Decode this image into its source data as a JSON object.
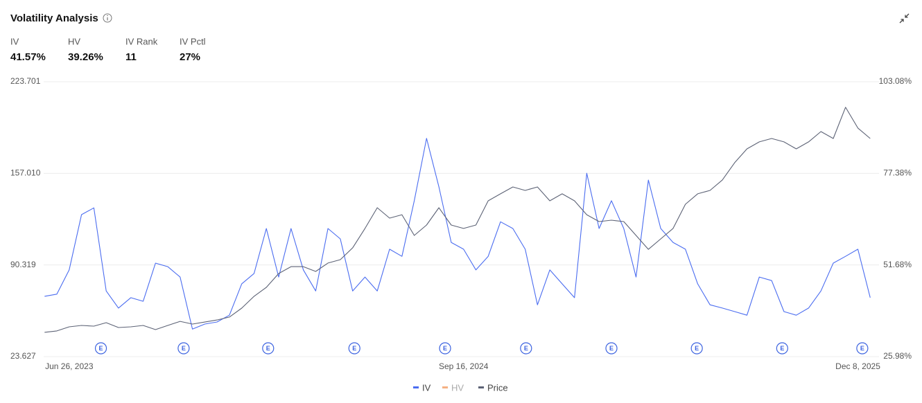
{
  "header": {
    "title": "Volatility Analysis",
    "stats": [
      {
        "label": "IV",
        "value": "41.57%"
      },
      {
        "label": "HV",
        "value": "39.26%"
      },
      {
        "label": "IV Rank",
        "value": "11"
      },
      {
        "label": "IV Pctl",
        "value": "27%"
      }
    ]
  },
  "chart_data": {
    "type": "line",
    "x": [
      "2023-05-29",
      "2023-06-12",
      "2023-06-26",
      "2023-07-10",
      "2023-07-24",
      "2023-08-07",
      "2023-08-21",
      "2023-09-04",
      "2023-09-18",
      "2023-10-02",
      "2023-10-16",
      "2023-10-30",
      "2023-11-13",
      "2023-11-27",
      "2023-12-11",
      "2023-12-25",
      "2024-01-08",
      "2024-01-22",
      "2024-02-05",
      "2024-02-19",
      "2024-03-04",
      "2024-03-18",
      "2024-04-01",
      "2024-04-15",
      "2024-04-29",
      "2024-05-13",
      "2024-05-27",
      "2024-06-10",
      "2024-06-24",
      "2024-07-08",
      "2024-07-22",
      "2024-08-05",
      "2024-08-19",
      "2024-09-02",
      "2024-09-16",
      "2024-09-30",
      "2024-10-14",
      "2024-10-28",
      "2024-11-11",
      "2024-11-25",
      "2024-12-09",
      "2024-12-23",
      "2025-01-06",
      "2025-01-20",
      "2025-02-03",
      "2025-02-17",
      "2025-03-03",
      "2025-03-17",
      "2025-03-31",
      "2025-04-14",
      "2025-04-28",
      "2025-05-12",
      "2025-05-26",
      "2025-06-09",
      "2025-06-23",
      "2025-07-07",
      "2025-07-21",
      "2025-08-04",
      "2025-08-18",
      "2025-09-01",
      "2025-09-15",
      "2025-09-29",
      "2025-10-13",
      "2025-10-27",
      "2025-11-10",
      "2025-11-24",
      "2025-12-08",
      "2025-12-22"
    ],
    "xlim": [
      "2023-05-28",
      "2026-01-01"
    ],
    "xticks": [
      {
        "value": "2023-06-26",
        "label": "Jun 26, 2023"
      },
      {
        "value": "2024-09-16",
        "label": "Sep 16, 2024"
      },
      {
        "value": "2025-12-08",
        "label": "Dec 8, 2025"
      }
    ],
    "ylim": [
      23.627,
      223.701
    ],
    "yticks": [
      23.627,
      90.319,
      {
        "value": 157.01,
        "label": "157.010"
      },
      223.701
    ],
    "y2lim": [
      25.98,
      103.08
    ],
    "y2ticks": [
      {
        "value": 25.98,
        "label": "25.98%"
      },
      {
        "value": 51.68,
        "label": "51.68%"
      },
      {
        "value": 77.38,
        "label": "77.38%"
      },
      {
        "value": 103.08,
        "label": "103.08%"
      }
    ],
    "grid": true,
    "legend": "bottom",
    "series": [
      {
        "name": "IV",
        "color": "#4a6cf0",
        "axis": "y2",
        "visible": true,
        "values": [
          42.9,
          43.5,
          50.3,
          65.8,
          67.7,
          44.4,
          39.6,
          42.5,
          41.5,
          52.2,
          51.2,
          48.3,
          33.7,
          35.1,
          35.7,
          37.6,
          46.4,
          49.3,
          61.9,
          48.3,
          61.9,
          50.3,
          44.4,
          61.9,
          59.0,
          44.4,
          48.3,
          44.4,
          56.1,
          54.1,
          69.7,
          87.2,
          73.6,
          58.0,
          56.1,
          50.3,
          54.1,
          63.8,
          61.9,
          56.1,
          40.5,
          50.3,
          46.4,
          42.5,
          77.4,
          61.9,
          69.7,
          61.9,
          48.3,
          75.5,
          61.9,
          58.0,
          56.1,
          46.4,
          40.5,
          39.6,
          38.6,
          37.6,
          48.3,
          47.3,
          38.6,
          37.6,
          39.6,
          44.4,
          52.2,
          54.1,
          56.1,
          42.5
        ]
      },
      {
        "name": "HV",
        "color": "#f5b183",
        "axis": "y2",
        "visible": false,
        "values": [
          null,
          null,
          null,
          null,
          null,
          null,
          null,
          null,
          null,
          null,
          null,
          null,
          null,
          null,
          null,
          null,
          null,
          null,
          null,
          null,
          null,
          null,
          null,
          null,
          null,
          null,
          null,
          null,
          null,
          null,
          null,
          null,
          null,
          null,
          null,
          null,
          null,
          null,
          null,
          null,
          null,
          null,
          null,
          null,
          null,
          null,
          null,
          null,
          null,
          null,
          null,
          null,
          null,
          null,
          null,
          null,
          null,
          null,
          null,
          null,
          null,
          null,
          null,
          null,
          null,
          null,
          null,
          null
        ]
      },
      {
        "name": "Price",
        "color": "#5c6275",
        "axis": "y",
        "visible": true,
        "values": [
          41.3,
          42.3,
          45.3,
          46.3,
          45.8,
          48.3,
          44.8,
          45.3,
          46.3,
          43.3,
          46.3,
          49.3,
          47.3,
          48.8,
          50.3,
          52.4,
          58.9,
          67.5,
          74.0,
          84.1,
          89.1,
          89.1,
          85.6,
          91.7,
          94.2,
          102.8,
          116.9,
          132.0,
          124.4,
          126.9,
          111.8,
          119.4,
          132.0,
          119.4,
          116.9,
          119.4,
          137.0,
          142.1,
          147.1,
          144.6,
          147.1,
          137.0,
          142.1,
          137.0,
          126.9,
          121.9,
          122.9,
          121.9,
          111.8,
          101.7,
          109.3,
          116.9,
          134.5,
          142.1,
          144.6,
          152.2,
          164.8,
          174.8,
          179.9,
          182.4,
          179.9,
          174.8,
          179.9,
          187.4,
          182.4,
          205.1,
          190.0,
          182.4
        ]
      }
    ],
    "earnings": {
      "label": "E",
      "dates": [
        "2023-08-01",
        "2023-11-03",
        "2024-02-07",
        "2024-05-15",
        "2024-08-26",
        "2024-11-26",
        "2025-03-03",
        "2025-06-08",
        "2025-09-13",
        "2025-12-13"
      ]
    }
  }
}
